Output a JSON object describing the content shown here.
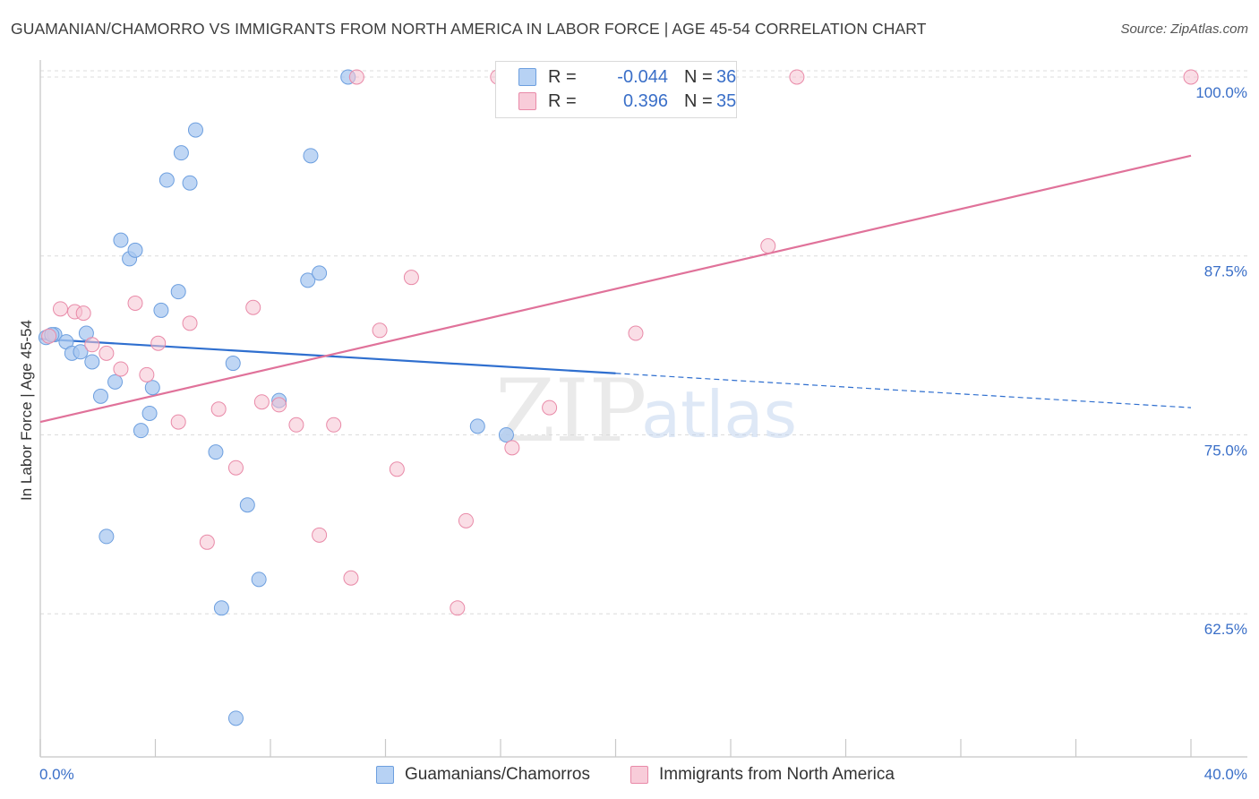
{
  "title": "GUAMANIAN/CHAMORRO VS IMMIGRANTS FROM NORTH AMERICA IN LABOR FORCE | AGE 45-54 CORRELATION CHART",
  "source": "Source: ZipAtlas.com",
  "watermark": {
    "zip": "ZIP",
    "atlas": "atlas"
  },
  "legend": {
    "rows": [
      {
        "r_label": "R =",
        "r_value": "-0.044",
        "n_label": "N =",
        "n_value": "36"
      },
      {
        "r_label": "R =",
        "r_value": "0.396",
        "n_label": "N =",
        "n_value": "35"
      }
    ]
  },
  "bottom_legend": {
    "series1": "Guamanians/Chamorros",
    "series2": "Immigrants from North America"
  },
  "colors": {
    "blue_fill": "#a9c8f0",
    "blue_stroke": "#6d9fdf",
    "blue_line": "#2f6fcf",
    "pink_fill": "#f6c3d2",
    "pink_stroke": "#e98aa8",
    "pink_line": "#e0729a",
    "tick_label": "#3a6fc8",
    "grid": "#dcdcdc"
  },
  "chart_data": {
    "type": "scatter",
    "title": "GUAMANIAN/CHAMORRO VS IMMIGRANTS FROM NORTH AMERICA IN LABOR FORCE | AGE 45-54 CORRELATION CHART",
    "xlabel": "",
    "ylabel": "In Labor Force | Age 45-54",
    "xlim": [
      0,
      40
    ],
    "ylim": [
      52.5,
      101.5
    ],
    "x_tick_labels": [
      "0.0%",
      "40.0%"
    ],
    "y_ticks": [
      62.5,
      75.0,
      87.5,
      100.0
    ],
    "y_tick_labels": [
      "62.5%",
      "75.0%",
      "87.5%",
      "100.0%"
    ],
    "series": [
      {
        "name": "Guamanians/Chamorros",
        "color": "blue",
        "points": [
          [
            0.2,
            81.8
          ],
          [
            0.5,
            82.0
          ],
          [
            0.9,
            81.5
          ],
          [
            1.1,
            80.7
          ],
          [
            1.4,
            80.8
          ],
          [
            1.6,
            82.1
          ],
          [
            1.8,
            80.1
          ],
          [
            2.1,
            77.7
          ],
          [
            2.3,
            67.9
          ],
          [
            2.6,
            78.7
          ],
          [
            2.8,
            88.6
          ],
          [
            3.1,
            87.3
          ],
          [
            3.3,
            87.9
          ],
          [
            3.5,
            75.3
          ],
          [
            3.8,
            76.5
          ],
          [
            3.9,
            78.3
          ],
          [
            4.2,
            83.7
          ],
          [
            4.4,
            92.8
          ],
          [
            4.8,
            85.0
          ],
          [
            4.9,
            94.7
          ],
          [
            5.2,
            92.6
          ],
          [
            5.4,
            96.3
          ],
          [
            6.1,
            73.8
          ],
          [
            6.3,
            62.9
          ],
          [
            6.7,
            80.0
          ],
          [
            6.8,
            55.2
          ],
          [
            7.2,
            70.1
          ],
          [
            7.6,
            64.9
          ],
          [
            8.3,
            77.4
          ],
          [
            9.3,
            85.8
          ],
          [
            9.4,
            94.5
          ],
          [
            9.7,
            86.3
          ],
          [
            10.7,
            100.0
          ],
          [
            15.2,
            75.6
          ],
          [
            16.2,
            75.0
          ],
          [
            0.4,
            82.0
          ]
        ],
        "trend": {
          "x_start": 0,
          "y_start": 81.7,
          "x_solid_end": 20,
          "y_solid_end": 79.3,
          "x_end": 40,
          "y_end": 76.9
        }
      },
      {
        "name": "Immigrants from North America",
        "color": "pink",
        "points": [
          [
            0.3,
            81.9
          ],
          [
            0.7,
            83.8
          ],
          [
            1.2,
            83.6
          ],
          [
            1.8,
            81.3
          ],
          [
            2.3,
            80.7
          ],
          [
            2.8,
            79.6
          ],
          [
            3.3,
            84.2
          ],
          [
            3.7,
            79.2
          ],
          [
            4.1,
            81.4
          ],
          [
            4.8,
            75.9
          ],
          [
            5.2,
            82.8
          ],
          [
            5.8,
            67.5
          ],
          [
            6.2,
            76.8
          ],
          [
            6.8,
            72.7
          ],
          [
            7.4,
            83.9
          ],
          [
            7.7,
            77.3
          ],
          [
            8.3,
            77.1
          ],
          [
            8.9,
            75.7
          ],
          [
            9.7,
            68.0
          ],
          [
            10.2,
            75.7
          ],
          [
            10.8,
            65.0
          ],
          [
            11.0,
            100.0
          ],
          [
            11.8,
            82.3
          ],
          [
            12.4,
            72.6
          ],
          [
            12.9,
            86.0
          ],
          [
            14.5,
            62.9
          ],
          [
            14.8,
            69.0
          ],
          [
            15.9,
            100.0
          ],
          [
            16.4,
            74.1
          ],
          [
            17.7,
            76.9
          ],
          [
            20.7,
            82.1
          ],
          [
            25.3,
            88.2
          ],
          [
            26.3,
            100.0
          ],
          [
            40.0,
            100.0
          ],
          [
            1.5,
            83.5
          ]
        ],
        "trend": {
          "x_start": 0,
          "y_start": 75.9,
          "x_end": 40,
          "y_end": 94.5
        }
      }
    ]
  }
}
